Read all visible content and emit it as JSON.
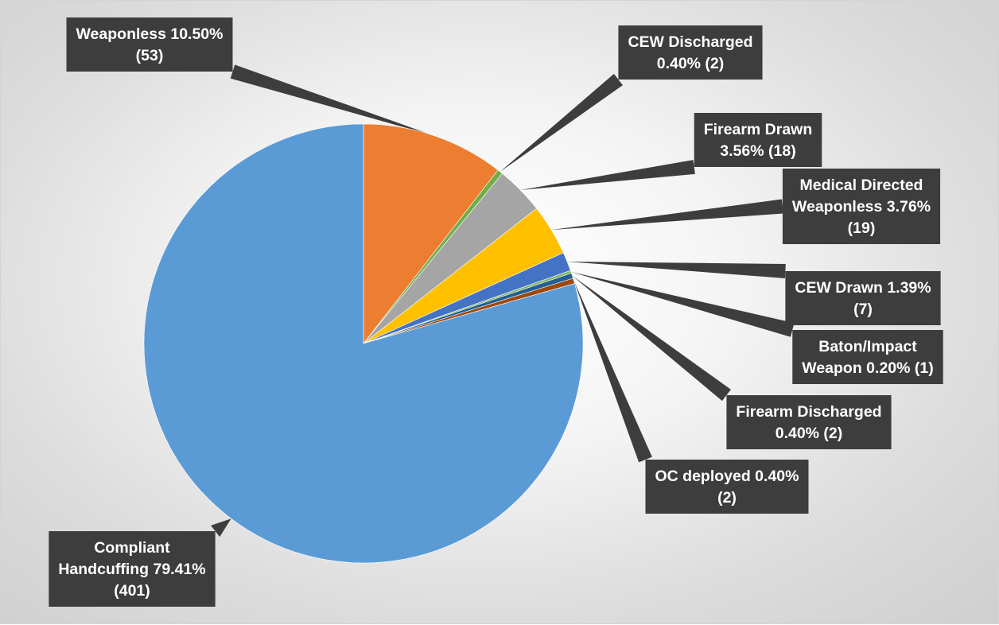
{
  "chart_data": {
    "type": "pie",
    "title": "",
    "colors": {
      "label_box": "#3d3d3d",
      "label_text": "#ffffff",
      "leader": "#3d3d3d"
    },
    "slices": [
      {
        "category": "Weaponless",
        "value": 53,
        "percent": "10.50%",
        "color": "#ED7D31",
        "label_lines": [
          "Weaponless 10.50%",
          "(53)"
        ]
      },
      {
        "category": "CEW Discharged",
        "value": 2,
        "percent": "0.40%",
        "color": "#70AD47",
        "label_lines": [
          "CEW Discharged",
          "0.40% (2)"
        ]
      },
      {
        "category": "Firearm Drawn",
        "value": 18,
        "percent": "3.56%",
        "color": "#A5A5A5",
        "label_lines": [
          "Firearm Drawn",
          "3.56% (18)"
        ]
      },
      {
        "category": "Medical Directed Weaponless",
        "value": 19,
        "percent": "3.76%",
        "color": "#FFC000",
        "label_lines": [
          "Medical Directed",
          "Weaponless 3.76%",
          "(19)"
        ]
      },
      {
        "category": "CEW Drawn",
        "value": 7,
        "percent": "1.39%",
        "color": "#4472C4",
        "label_lines": [
          "CEW Drawn 1.39%",
          "(7)"
        ]
      },
      {
        "category": "Baton/Impact Weapon",
        "value": 1,
        "percent": "0.20%",
        "color": "#7FB56A",
        "label_lines": [
          "Baton/Impact",
          "Weapon 0.20% (1)"
        ]
      },
      {
        "category": "Firearm Discharged",
        "value": 2,
        "percent": "0.40%",
        "color": "#255E91",
        "label_lines": [
          "Firearm Discharged",
          "0.40% (2)"
        ]
      },
      {
        "category": "OC deployed",
        "value": 2,
        "percent": "0.40%",
        "color": "#9E480E",
        "label_lines": [
          "OC deployed 0.40%",
          "(2)"
        ]
      },
      {
        "category": "Compliant Handcuffing",
        "value": 401,
        "percent": "79.41%",
        "color": "#5B9BD5",
        "label_lines": [
          "Compliant",
          "Handcuffing 79.41%",
          "(401)"
        ]
      }
    ]
  }
}
